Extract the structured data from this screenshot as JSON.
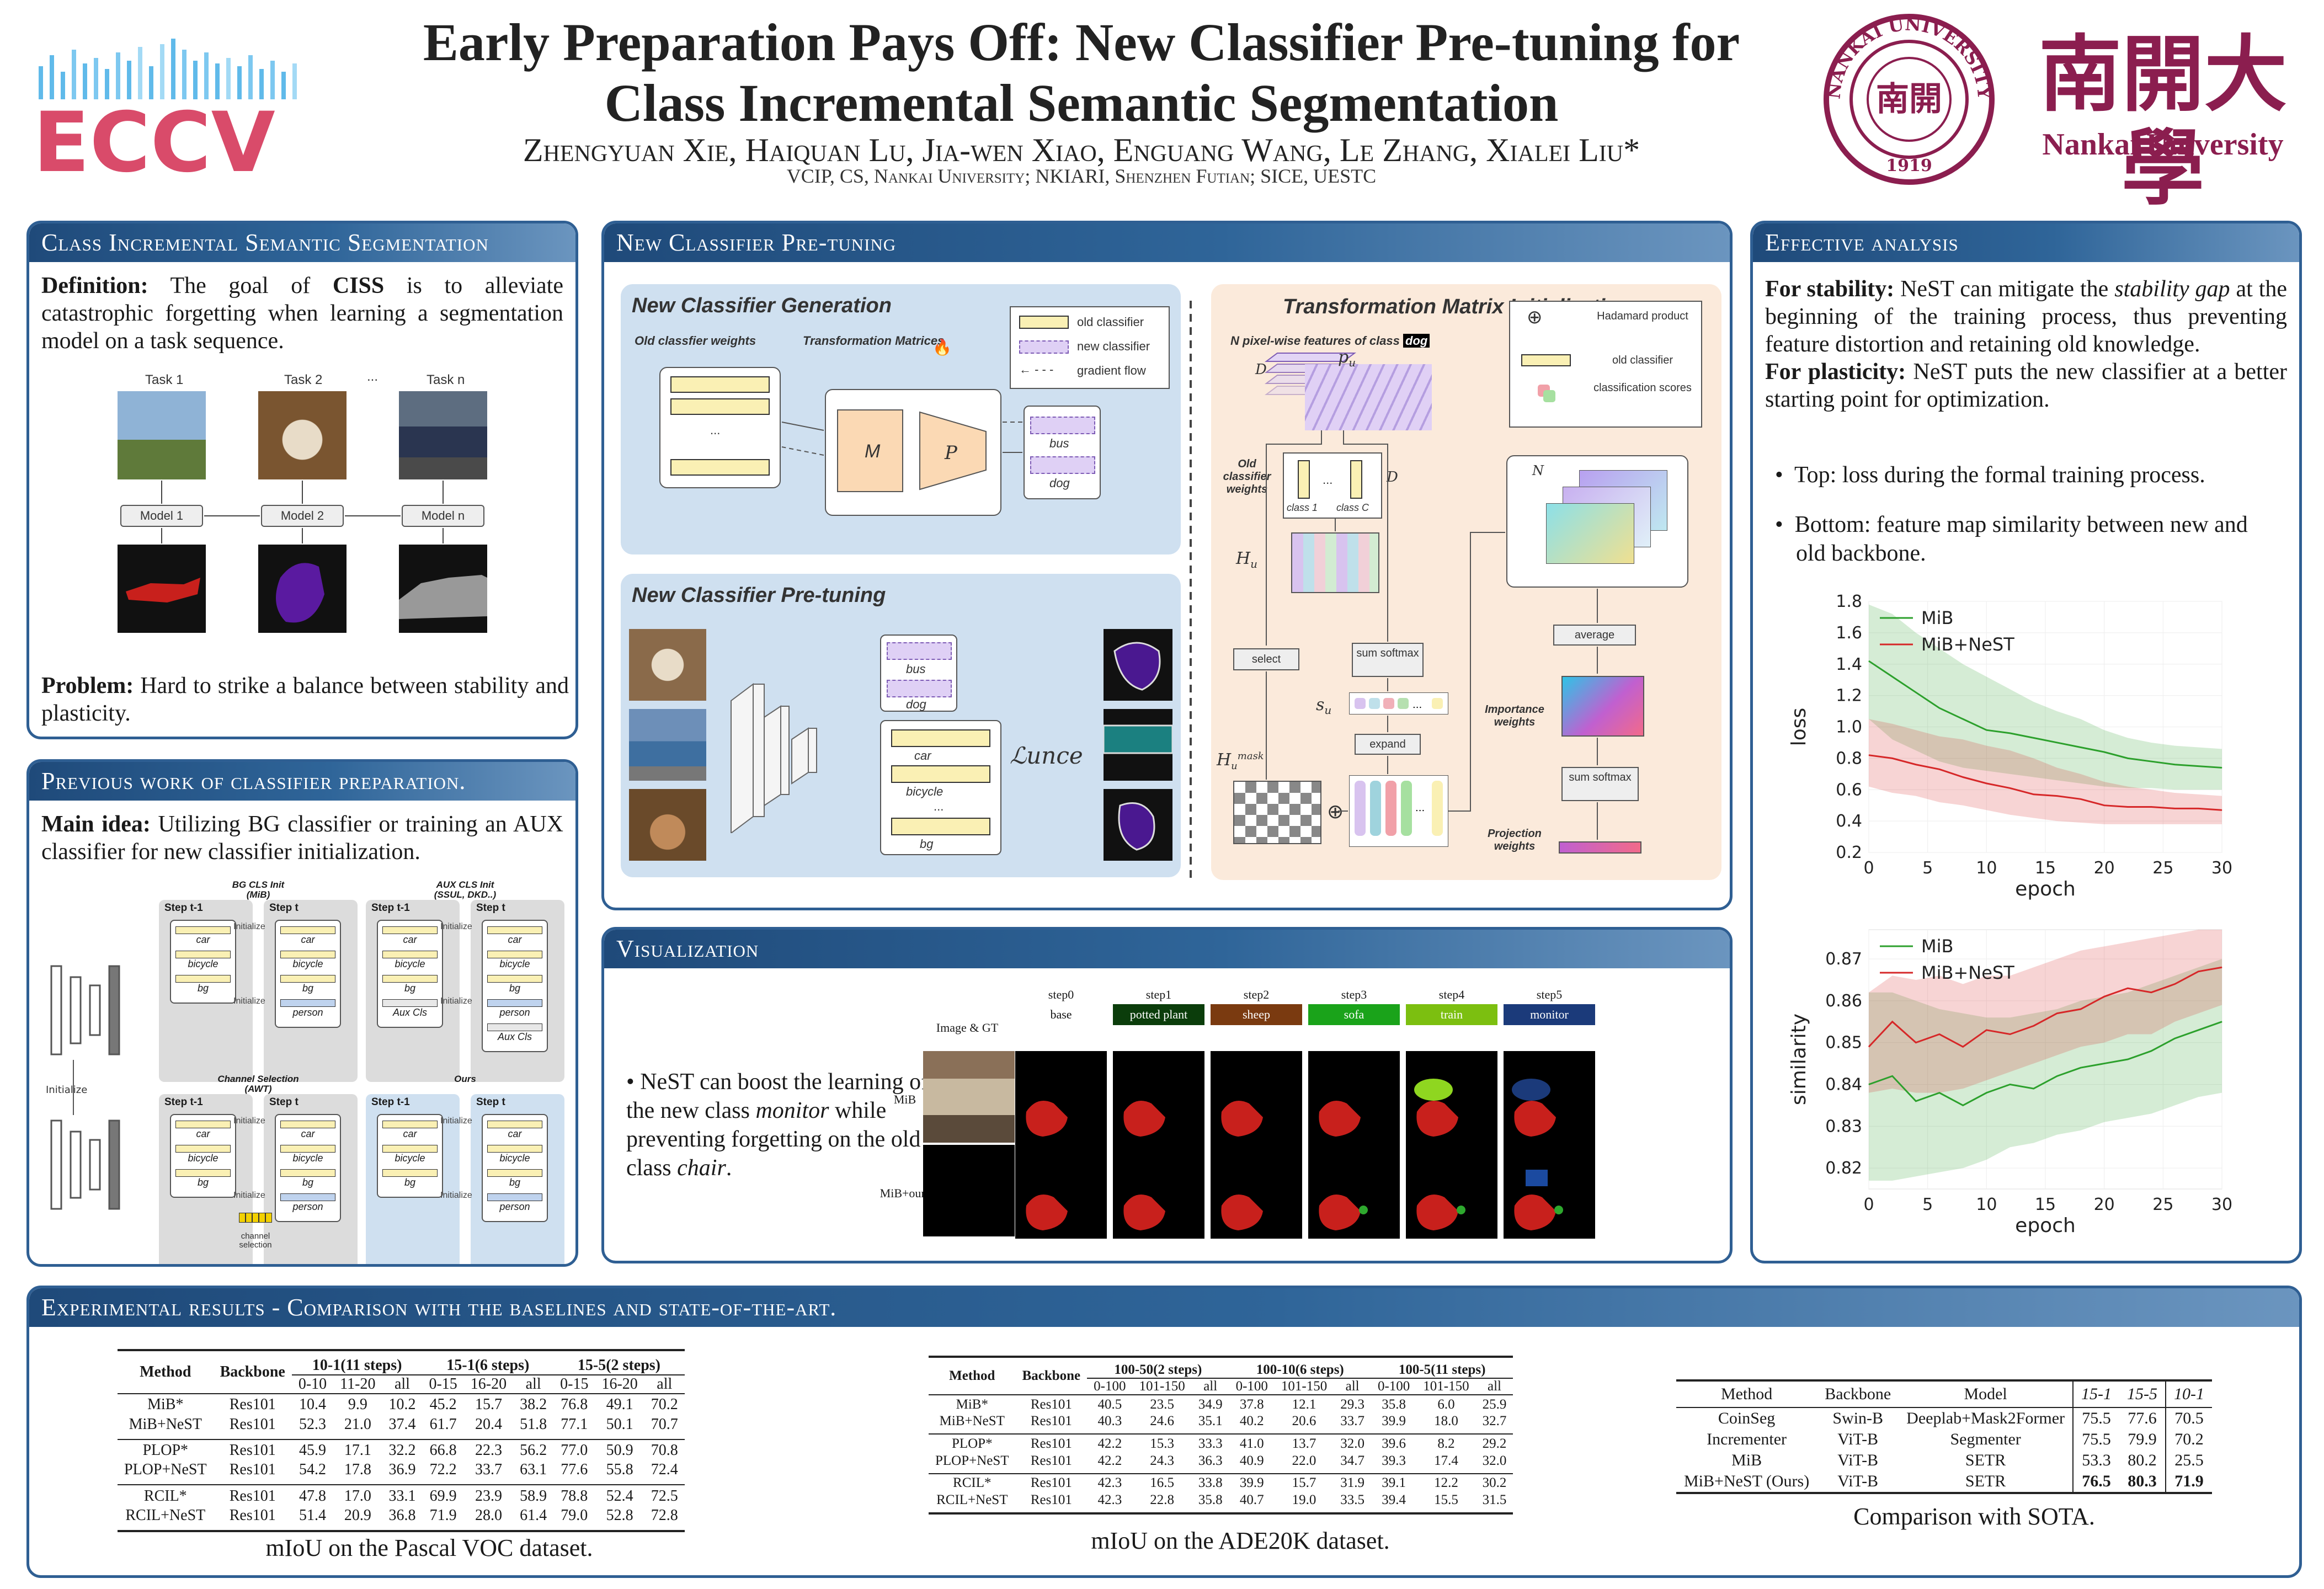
{
  "header": {
    "title_line1": "Early Preparation Pays Off: New Classifier Pre-tuning for",
    "title_line2": "Class Incremental Semantic Segmentation",
    "authors": "Zhengyuan Xie, Haiquan Lu, Jia-wen Xiao, Enguang Wang, Le Zhang, Xialei Liu*",
    "affiliations": "VCIP, CS, Nankai University; NKIARI, Shenzhen Futian; SICE, UESTC",
    "eccv_logo": "ECCV",
    "univ_cn": "南開大學",
    "univ_en": "Nankai University",
    "seal_text": "NANKAI UNIVERSITY",
    "seal_year": "1919"
  },
  "ciss": {
    "heading": "Class Incremental Semantic Segmentation",
    "def_label": "Definition:",
    "def_text_a": "The goal of",
    "def_ciss": "CISS",
    "def_text_b": "is to alleviate catastrophic forgetting when learning a segmentation model on a task sequence.",
    "tasks": [
      "Task 1",
      "Task 2",
      "...",
      "Task n"
    ],
    "models": [
      "Model 1",
      "Model 2",
      "Model n"
    ],
    "problem_label": "Problem:",
    "problem_text": "Hard to strike a balance between stability and plasticity."
  },
  "prev": {
    "heading": "Previous work of classifier preparation.",
    "main_label": "Main idea:",
    "main_text": "Utilizing BG classifier or training an AUX classifier for new classifier initialization.",
    "initialize": "Initialize",
    "blocks": [
      {
        "title": "BG CLS Init\n(MiB)",
        "t1": "Step t-1",
        "t2": "Step t",
        "left": [
          "car",
          "bicycle",
          "bg"
        ],
        "right": [
          "car",
          "bicycle",
          "bg",
          "person"
        ]
      },
      {
        "title": "AUX CLS Init\n(SSUL, DKD..)",
        "t1": "Step t-1",
        "t2": "Step t",
        "left": [
          "car",
          "bicycle",
          "bg",
          "Aux Cls"
        ],
        "right": [
          "car",
          "bicycle",
          "bg",
          "person",
          "Aux Cls"
        ]
      },
      {
        "title": "Channel Selection\n(AWT)",
        "t1": "Step t-1",
        "t2": "Step t",
        "left": [
          "car",
          "bicycle",
          "bg"
        ],
        "right": [
          "car",
          "bicycle",
          "bg",
          "person"
        ],
        "extra": "channel selection"
      },
      {
        "title": "Ours",
        "t1": "Step t-1",
        "t2": "Step t",
        "left": [
          "car",
          "bicycle",
          "bg"
        ],
        "right": [
          "car",
          "bicycle",
          "bg",
          "person"
        ]
      }
    ]
  },
  "nest": {
    "heading": "New Classifier Pre-tuning",
    "gen_title": "New Classifier Generation",
    "old_weights": "Old classfier weights",
    "trans_mat": "Transformation Matrices",
    "M": "M",
    "P": "P",
    "legend": [
      "old classifier",
      "new classifier",
      "gradient flow"
    ],
    "bus": "bus",
    "dog": "dog",
    "pretune_title": "New Classifier Pre-tuning",
    "classes": [
      "car",
      "bicycle",
      "...",
      "bg"
    ],
    "loss": "ℒunce",
    "tmi_title": "Transformation Matrix Initialization",
    "npix": "N pixel-wise features of class",
    "npix_cls": "dog",
    "pu": "p",
    "D": "D",
    "N": "N",
    "old_cls_w": "Old classifier weights",
    "class1": "class 1",
    "classC": "class C",
    "Hu": "H",
    "select": "select",
    "sum_softmax": "sum softmax",
    "su": "s",
    "expand": "expand",
    "Humask": "H",
    "average": "average",
    "importance": "Importance weights",
    "projection": "Projection weights",
    "legend2": [
      "Hadamard product",
      "old classifier",
      "classification scores"
    ]
  },
  "effect": {
    "heading": "Effective analysis",
    "stab_label": "For stability:",
    "stab_text_a": "NeST can mitigate the",
    "stab_em": "stability gap",
    "stab_text_b": "at the beginning of the training process, thus preventing feature distortion and retaining old knowledge.",
    "plas_label": "For plasticity:",
    "plas_text": "NeST puts the new classifier at a better starting point for optimization.",
    "bullets": [
      "Top: loss during the formal training process.",
      "Bottom: feature map similarity between new and old backbone."
    ]
  },
  "chart_data": [
    {
      "type": "line",
      "title": "",
      "xlabel": "epoch",
      "ylabel": "loss",
      "xlim": [
        0,
        30
      ],
      "ylim": [
        0.2,
        1.8
      ],
      "xticks": [
        0,
        5,
        10,
        15,
        20,
        25,
        30
      ],
      "yticks": [
        0.2,
        0.4,
        0.6,
        0.8,
        1.0,
        1.2,
        1.4,
        1.6,
        1.8
      ],
      "legend": "top-left",
      "grid": true,
      "series": [
        {
          "name": "MiB",
          "color": "#2ca02c",
          "x": [
            0,
            2,
            4,
            6,
            8,
            10,
            12,
            14,
            16,
            18,
            20,
            22,
            24,
            26,
            28,
            30
          ],
          "values": [
            1.42,
            1.32,
            1.22,
            1.12,
            1.05,
            0.98,
            0.96,
            0.93,
            0.9,
            0.87,
            0.84,
            0.8,
            0.78,
            0.76,
            0.75,
            0.74
          ],
          "lower": [
            1.05,
            0.92,
            0.85,
            0.78,
            0.74,
            0.72,
            0.7,
            0.68,
            0.66,
            0.64,
            0.62,
            0.61,
            0.61,
            0.6,
            0.6,
            0.6
          ],
          "upper": [
            1.78,
            1.72,
            1.6,
            1.5,
            1.4,
            1.32,
            1.24,
            1.16,
            1.1,
            1.05,
            0.98,
            0.93,
            0.9,
            0.88,
            0.87,
            0.86
          ]
        },
        {
          "name": "MiB+NeST",
          "color": "#d62728",
          "x": [
            0,
            2,
            4,
            6,
            8,
            10,
            12,
            14,
            16,
            18,
            20,
            22,
            24,
            26,
            28,
            30
          ],
          "values": [
            0.82,
            0.8,
            0.76,
            0.73,
            0.68,
            0.64,
            0.61,
            0.57,
            0.56,
            0.54,
            0.5,
            0.49,
            0.49,
            0.48,
            0.48,
            0.47
          ],
          "lower": [
            0.62,
            0.58,
            0.56,
            0.52,
            0.5,
            0.47,
            0.44,
            0.42,
            0.4,
            0.39,
            0.38,
            0.38,
            0.38,
            0.38,
            0.38,
            0.38
          ],
          "upper": [
            1.05,
            1.02,
            0.98,
            0.94,
            0.92,
            0.88,
            0.85,
            0.8,
            0.74,
            0.7,
            0.65,
            0.62,
            0.6,
            0.58,
            0.57,
            0.56
          ]
        }
      ]
    },
    {
      "type": "line",
      "title": "",
      "xlabel": "epoch",
      "ylabel": "similarity",
      "xlim": [
        0,
        30
      ],
      "ylim": [
        0.815,
        0.877
      ],
      "xticks": [
        0,
        5,
        10,
        15,
        20,
        25,
        30
      ],
      "yticks": [
        0.82,
        0.83,
        0.84,
        0.85,
        0.86,
        0.87
      ],
      "legend": "top-left",
      "grid": true,
      "series": [
        {
          "name": "MiB",
          "color": "#2ca02c",
          "x": [
            0,
            2,
            4,
            6,
            8,
            10,
            12,
            14,
            16,
            18,
            20,
            22,
            24,
            26,
            28,
            30
          ],
          "values": [
            0.84,
            0.842,
            0.836,
            0.838,
            0.835,
            0.838,
            0.84,
            0.839,
            0.842,
            0.844,
            0.845,
            0.846,
            0.848,
            0.851,
            0.853,
            0.855
          ],
          "lower": [
            0.817,
            0.817,
            0.818,
            0.819,
            0.82,
            0.822,
            0.825,
            0.826,
            0.828,
            0.829,
            0.831,
            0.832,
            0.833,
            0.835,
            0.837,
            0.838
          ],
          "upper": [
            0.862,
            0.862,
            0.86,
            0.858,
            0.857,
            0.856,
            0.856,
            0.857,
            0.858,
            0.86,
            0.861,
            0.862,
            0.864,
            0.866,
            0.868,
            0.87
          ]
        },
        {
          "name": "MiB+NeST",
          "color": "#d62728",
          "x": [
            0,
            2,
            4,
            6,
            8,
            10,
            12,
            14,
            16,
            18,
            20,
            22,
            24,
            26,
            28,
            30
          ],
          "values": [
            0.849,
            0.855,
            0.85,
            0.852,
            0.849,
            0.853,
            0.852,
            0.854,
            0.857,
            0.858,
            0.861,
            0.863,
            0.862,
            0.864,
            0.867,
            0.868
          ],
          "lower": [
            0.838,
            0.839,
            0.838,
            0.838,
            0.839,
            0.841,
            0.843,
            0.845,
            0.847,
            0.849,
            0.85,
            0.852,
            0.852,
            0.855,
            0.857,
            0.859
          ],
          "upper": [
            0.862,
            0.866,
            0.865,
            0.866,
            0.864,
            0.866,
            0.866,
            0.868,
            0.87,
            0.872,
            0.873,
            0.874,
            0.875,
            0.876,
            0.877,
            0.877
          ]
        }
      ]
    }
  ],
  "vis": {
    "heading": "Visualization",
    "bullet_a": "NeST can boost the learning of the new class",
    "bullet_em1": "monitor",
    "bullet_b": "while preventing forgetting on the old class",
    "bullet_em2": "chair",
    "bullet_end": ".",
    "img_gt": "Image & GT",
    "steps": [
      "step0",
      "step1",
      "step2",
      "step3",
      "step4",
      "step5"
    ],
    "classes": [
      "base",
      "potted plant",
      "sheep",
      "sofa",
      "train",
      "monitor"
    ],
    "class_colors": [
      "#ffffff",
      "#0b3d0b",
      "#7a3a10",
      "#1aa31a",
      "#7cbf10",
      "#1b3a7a"
    ],
    "rows": [
      "MiB",
      "MiB+ours"
    ]
  },
  "results": {
    "heading": "Experimental results - Comparison with the baselines and state-of-the-art.",
    "voc": {
      "caption": "mIoU on the Pascal VOC dataset.",
      "h1": [
        "Method",
        "Backbone",
        "10-1(11 steps)",
        "15-1(6 steps)",
        "15-5(2 steps)"
      ],
      "h2": [
        "0-10",
        "11-20",
        "all",
        "0-15",
        "16-20",
        "all",
        "0-15",
        "16-20",
        "all"
      ],
      "groups": [
        [
          [
            "MiB*",
            "Res101",
            "10.4",
            "9.9",
            "10.2",
            "45.2",
            "15.7",
            "38.2",
            "76.8",
            "49.1",
            "70.2"
          ],
          [
            "MiB+NeST",
            "Res101",
            "52.3",
            "21.0",
            "37.4",
            "61.7",
            "20.4",
            "51.8",
            "77.1",
            "50.1",
            "70.7"
          ]
        ],
        [
          [
            "PLOP*",
            "Res101",
            "45.9",
            "17.1",
            "32.2",
            "66.8",
            "22.3",
            "56.2",
            "77.0",
            "50.9",
            "70.8"
          ],
          [
            "PLOP+NeST",
            "Res101",
            "54.2",
            "17.8",
            "36.9",
            "72.2",
            "33.7",
            "63.1",
            "77.6",
            "55.8",
            "72.4"
          ]
        ],
        [
          [
            "RCIL*",
            "Res101",
            "47.8",
            "17.0",
            "33.1",
            "69.9",
            "23.9",
            "58.9",
            "78.8",
            "52.4",
            "72.5"
          ],
          [
            "RCIL+NeST",
            "Res101",
            "51.4",
            "20.9",
            "36.8",
            "71.9",
            "28.0",
            "61.4",
            "79.0",
            "52.8",
            "72.8"
          ]
        ]
      ]
    },
    "ade": {
      "caption": "mIoU on the ADE20K dataset.",
      "h1": [
        "Method",
        "Backbone",
        "100-50(2 steps)",
        "100-10(6 steps)",
        "100-5(11 steps)"
      ],
      "h2": [
        "0-100",
        "101-150",
        "all",
        "0-100",
        "101-150",
        "all",
        "0-100",
        "101-150",
        "all"
      ],
      "groups": [
        [
          [
            "MiB*",
            "Res101",
            "40.5",
            "23.5",
            "34.9",
            "37.8",
            "12.1",
            "29.3",
            "35.8",
            "6.0",
            "25.9"
          ],
          [
            "MiB+NeST",
            "Res101",
            "40.3",
            "24.6",
            "35.1",
            "40.2",
            "20.6",
            "33.7",
            "39.9",
            "18.0",
            "32.7"
          ]
        ],
        [
          [
            "PLOP*",
            "Res101",
            "42.2",
            "15.3",
            "33.3",
            "41.0",
            "13.7",
            "32.0",
            "39.6",
            "8.2",
            "29.2"
          ],
          [
            "PLOP+NeST",
            "Res101",
            "42.2",
            "24.3",
            "36.3",
            "40.9",
            "22.0",
            "34.7",
            "39.3",
            "17.4",
            "32.0"
          ]
        ],
        [
          [
            "RCIL*",
            "Res101",
            "42.3",
            "16.5",
            "33.8",
            "39.9",
            "15.7",
            "31.9",
            "39.1",
            "12.2",
            "30.2"
          ],
          [
            "RCIL+NeST",
            "Res101",
            "42.3",
            "22.8",
            "35.8",
            "40.7",
            "19.0",
            "33.5",
            "39.4",
            "15.5",
            "31.5"
          ]
        ]
      ]
    },
    "sota": {
      "caption": "Comparison with SOTA.",
      "h": [
        "Method",
        "Backbone",
        "Model",
        "15-1",
        "15-5",
        "10-1"
      ],
      "rows": [
        [
          "CoinSeg",
          "Swin-B",
          "Deeplab+Mask2Former",
          "75.5",
          "77.6",
          "70.5"
        ],
        [
          "Incrementer",
          "ViT-B",
          "Segmenter",
          "75.5",
          "79.9",
          "70.2"
        ],
        [
          "MiB",
          "ViT-B",
          "SETR",
          "53.3",
          "80.2",
          "25.5"
        ],
        [
          "MiB+NeST (Ours)",
          "ViT-B",
          "SETR",
          "76.5",
          "80.3",
          "71.9"
        ]
      ]
    }
  }
}
